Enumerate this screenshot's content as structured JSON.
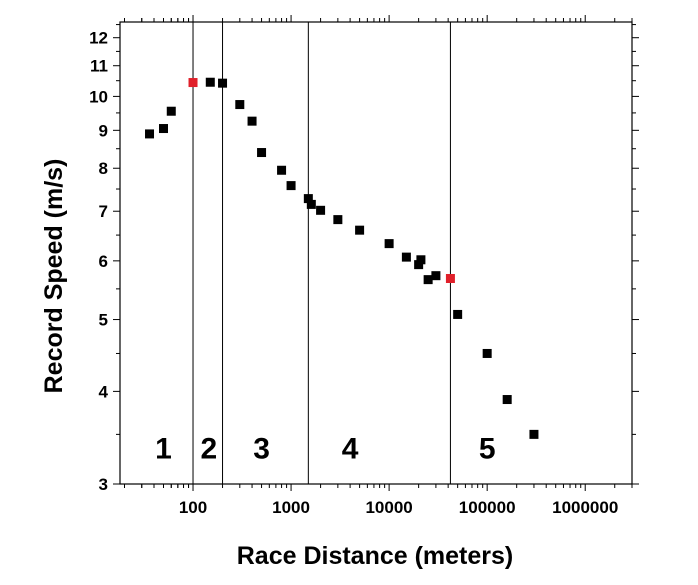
{
  "chart_data": {
    "type": "scatter",
    "xlabel": "Race Distance (meters)",
    "ylabel": "Record Speed (m/s)",
    "x_scale": "log",
    "y_scale": "log",
    "xlim": [
      18,
      3000000
    ],
    "ylim": [
      3,
      12.6
    ],
    "x_ticks": [
      100,
      1000,
      10000,
      100000,
      1000000
    ],
    "x_tick_labels": [
      "100",
      "1000",
      "10000",
      "100000",
      "1000000"
    ],
    "y_ticks": [
      3,
      4,
      5,
      6,
      7,
      8,
      9,
      10,
      11,
      12
    ],
    "y_tick_labels": [
      "3",
      "4",
      "5",
      "6",
      "7",
      "8",
      "9",
      "10",
      "11",
      "12"
    ],
    "grid": false,
    "boundaries": [
      100,
      200,
      1500,
      42195
    ],
    "regions": [
      {
        "label": "1",
        "x": 50
      },
      {
        "label": "2",
        "x": 145
      },
      {
        "label": "3",
        "x": 500
      },
      {
        "label": "4",
        "x": 4000
      },
      {
        "label": "5",
        "x": 100000
      }
    ],
    "region_label_y": 3.35,
    "colors": {
      "normal": "#000000",
      "highlight": "#e0202a",
      "axis": "#000000"
    },
    "points": [
      {
        "x": 36,
        "y": 8.9,
        "highlight": false
      },
      {
        "x": 50,
        "y": 9.05,
        "highlight": false
      },
      {
        "x": 60,
        "y": 9.55,
        "highlight": false
      },
      {
        "x": 100,
        "y": 10.44,
        "highlight": true
      },
      {
        "x": 150,
        "y": 10.45,
        "highlight": false
      },
      {
        "x": 200,
        "y": 10.42,
        "highlight": false
      },
      {
        "x": 300,
        "y": 9.75,
        "highlight": false
      },
      {
        "x": 400,
        "y": 9.26,
        "highlight": false
      },
      {
        "x": 500,
        "y": 8.4,
        "highlight": false
      },
      {
        "x": 800,
        "y": 7.95,
        "highlight": false
      },
      {
        "x": 1000,
        "y": 7.58,
        "highlight": false
      },
      {
        "x": 1500,
        "y": 7.28,
        "highlight": false
      },
      {
        "x": 1609,
        "y": 7.15,
        "highlight": false
      },
      {
        "x": 2000,
        "y": 7.02,
        "highlight": false
      },
      {
        "x": 3000,
        "y": 6.82,
        "highlight": false
      },
      {
        "x": 5000,
        "y": 6.6,
        "highlight": false
      },
      {
        "x": 10000,
        "y": 6.33,
        "highlight": false
      },
      {
        "x": 15000,
        "y": 6.07,
        "highlight": false
      },
      {
        "x": 20000,
        "y": 5.93,
        "highlight": false
      },
      {
        "x": 21097,
        "y": 6.02,
        "highlight": false
      },
      {
        "x": 25000,
        "y": 5.66,
        "highlight": false
      },
      {
        "x": 30000,
        "y": 5.73,
        "highlight": false
      },
      {
        "x": 42195,
        "y": 5.68,
        "highlight": true
      },
      {
        "x": 50000,
        "y": 5.08,
        "highlight": false
      },
      {
        "x": 100000,
        "y": 4.5,
        "highlight": false
      },
      {
        "x": 160000,
        "y": 3.9,
        "highlight": false
      },
      {
        "x": 300000,
        "y": 3.5,
        "highlight": false
      }
    ]
  }
}
